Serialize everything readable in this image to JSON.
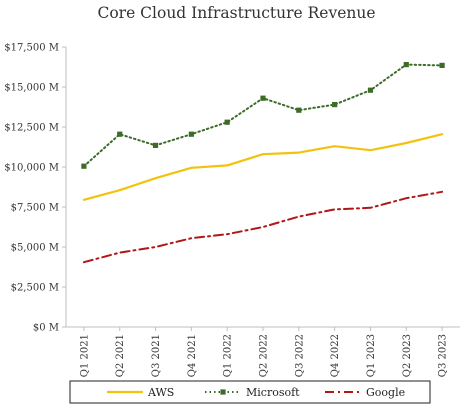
{
  "chart_data": {
    "type": "line",
    "title": "Core Cloud Infrastructure Revenue",
    "xlabel": "",
    "ylabel": "",
    "categories": [
      "Q1 2021",
      "Q2 2021",
      "Q3 2021",
      "Q4 2021",
      "Q1 2022",
      "Q2 2022",
      "Q3 2022",
      "Q4 2022",
      "Q1 2023",
      "Q2 2023",
      "Q3 2023"
    ],
    "y_ticks": [
      "$0 M",
      "$2,500 M",
      "$5,000 M",
      "$7,500 M",
      "$10,000 M",
      "$12,500 M",
      "$15,000 M",
      "$17,500 M"
    ],
    "ylim": [
      0,
      17500
    ],
    "grid": false,
    "legend_position": "bottom",
    "series": [
      {
        "name": "AWS",
        "color": "#f2c20f",
        "style": "solid",
        "marker": "none",
        "values": [
          7950,
          8550,
          9300,
          9950,
          10100,
          10800,
          10900,
          11300,
          11050,
          11500,
          12050
        ]
      },
      {
        "name": "Microsoft",
        "color": "#3d6b28",
        "style": "dotted",
        "marker": "square",
        "values": [
          10050,
          12050,
          11350,
          12050,
          12800,
          14300,
          13550,
          13900,
          14800,
          16400,
          16350
        ]
      },
      {
        "name": "Google",
        "color": "#b01818",
        "style": "dash-dot",
        "marker": "none",
        "values": [
          4050,
          4650,
          5000,
          5550,
          5800,
          6250,
          6900,
          7350,
          7450,
          8050,
          8450
        ]
      }
    ]
  }
}
